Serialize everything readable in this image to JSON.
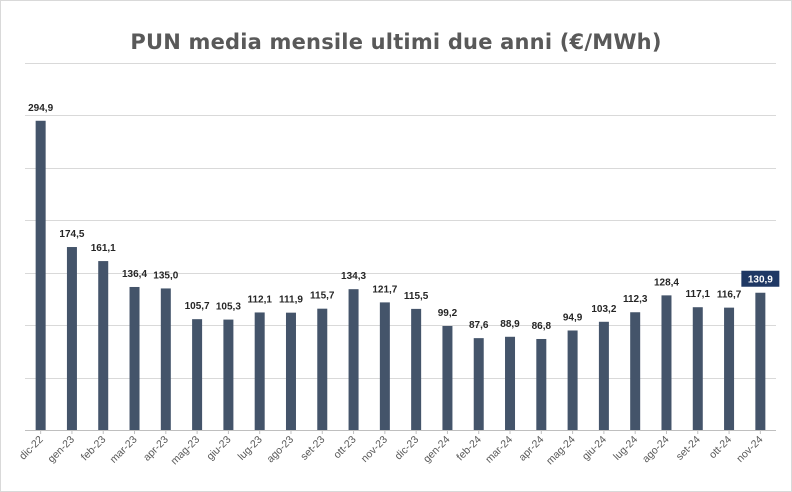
{
  "chart_data": {
    "type": "bar",
    "title": "PUN media mensile ultimi due anni (€/MWh)",
    "xlabel": "",
    "ylabel": "",
    "ylim": [
      0,
      350
    ],
    "grid": true,
    "legend": "none",
    "categories": [
      "dic-22",
      "gen-23",
      "feb-23",
      "mar-23",
      "apr-23",
      "mag-23",
      "giu-23",
      "lug-23",
      "ago-23",
      "set-23",
      "ott-23",
      "nov-23",
      "dic-23",
      "gen-24",
      "feb-24",
      "mar-24",
      "apr-24",
      "mag-24",
      "giu-24",
      "lug-24",
      "ago-24",
      "set-24",
      "ott-24",
      "nov-24"
    ],
    "values": [
      294.9,
      174.5,
      161.1,
      136.4,
      135.0,
      105.7,
      105.3,
      112.1,
      111.9,
      115.7,
      134.3,
      121.7,
      115.5,
      99.2,
      87.6,
      88.9,
      86.8,
      94.9,
      103.2,
      112.3,
      128.4,
      117.1,
      116.7,
      130.9
    ],
    "labels": [
      "294,9",
      "174,5",
      "161,1",
      "136,4",
      "135,0",
      "105,7",
      "105,3",
      "112,1",
      "111,9",
      "115,7",
      "134,3",
      "121,7",
      "115,5",
      "99,2",
      "87,6",
      "88,9",
      "86,8",
      "94,9",
      "103,2",
      "112,3",
      "128,4",
      "117,1",
      "116,7",
      "130,9"
    ],
    "highlight_index": 23,
    "bar_color": "#44546a",
    "highlight_label_bg": "#1f3864"
  }
}
